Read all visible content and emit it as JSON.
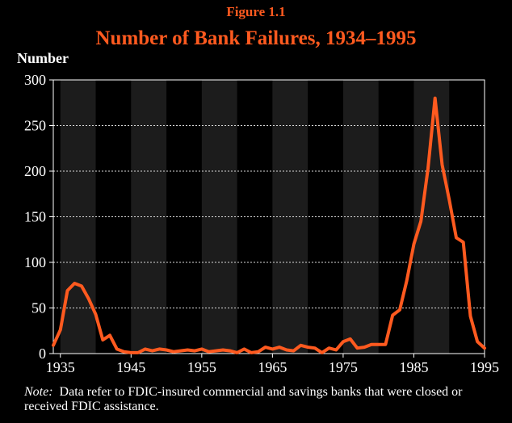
{
  "figure_label": "Figure 1.1",
  "note": {
    "label": "Note:",
    "text": "Data refer to FDIC-insured commercial and savings banks that were closed or received FDIC assistance."
  },
  "colors": {
    "line": "#ff5a1f",
    "title": "#ff5a1f",
    "band": "#1c1c1c",
    "background": "#000000",
    "text": "#ffffff"
  },
  "chart_data": {
    "type": "line",
    "title": "Number of Bank Failures, 1934–1995",
    "xlabel": "",
    "ylabel": "Number",
    "xlim": [
      1934,
      1995
    ],
    "ylim": [
      0,
      300
    ],
    "xticks": [
      1935,
      1945,
      1955,
      1965,
      1975,
      1985,
      1995
    ],
    "xtick_labels": [
      "1935",
      "1945",
      "1955",
      "1965",
      "1975",
      "1985",
      "1995"
    ],
    "yticks": [
      0,
      50,
      100,
      150,
      200,
      250,
      300
    ],
    "ytick_labels": [
      "0",
      "50",
      "100",
      "150",
      "200",
      "250",
      "300"
    ],
    "grid": "horizontal dashed",
    "shaded_bands": [
      [
        1935,
        1940
      ],
      [
        1945,
        1950
      ],
      [
        1955,
        1960
      ],
      [
        1965,
        1970
      ],
      [
        1975,
        1980
      ],
      [
        1985,
        1990
      ]
    ],
    "series": [
      {
        "x": [
          1934,
          1935,
          1936,
          1937,
          1938,
          1939,
          1940,
          1941,
          1942,
          1943,
          1944,
          1945,
          1946,
          1947,
          1948,
          1949,
          1950,
          1951,
          1952,
          1953,
          1954,
          1955,
          1956,
          1957,
          1958,
          1959,
          1960,
          1961,
          1962,
          1963,
          1964,
          1965,
          1966,
          1967,
          1968,
          1969,
          1970,
          1971,
          1972,
          1973,
          1974,
          1975,
          1976,
          1977,
          1978,
          1979,
          1980,
          1981,
          1982,
          1983,
          1984,
          1985,
          1986,
          1987,
          1988,
          1989,
          1990,
          1991,
          1992,
          1993,
          1994,
          1995
        ],
        "values": [
          9,
          26,
          69,
          77,
          74,
          60,
          43,
          15,
          20,
          5,
          2,
          1,
          1,
          5,
          3,
          5,
          4,
          2,
          3,
          4,
          3,
          5,
          2,
          3,
          4,
          3,
          1,
          5,
          1,
          2,
          7,
          5,
          7,
          4,
          3,
          9,
          7,
          6,
          1,
          6,
          4,
          13,
          16,
          6,
          7,
          10,
          10,
          10,
          42,
          48,
          80,
          120,
          145,
          203,
          280,
          207,
          169,
          127,
          122,
          41,
          13,
          6
        ]
      }
    ]
  }
}
